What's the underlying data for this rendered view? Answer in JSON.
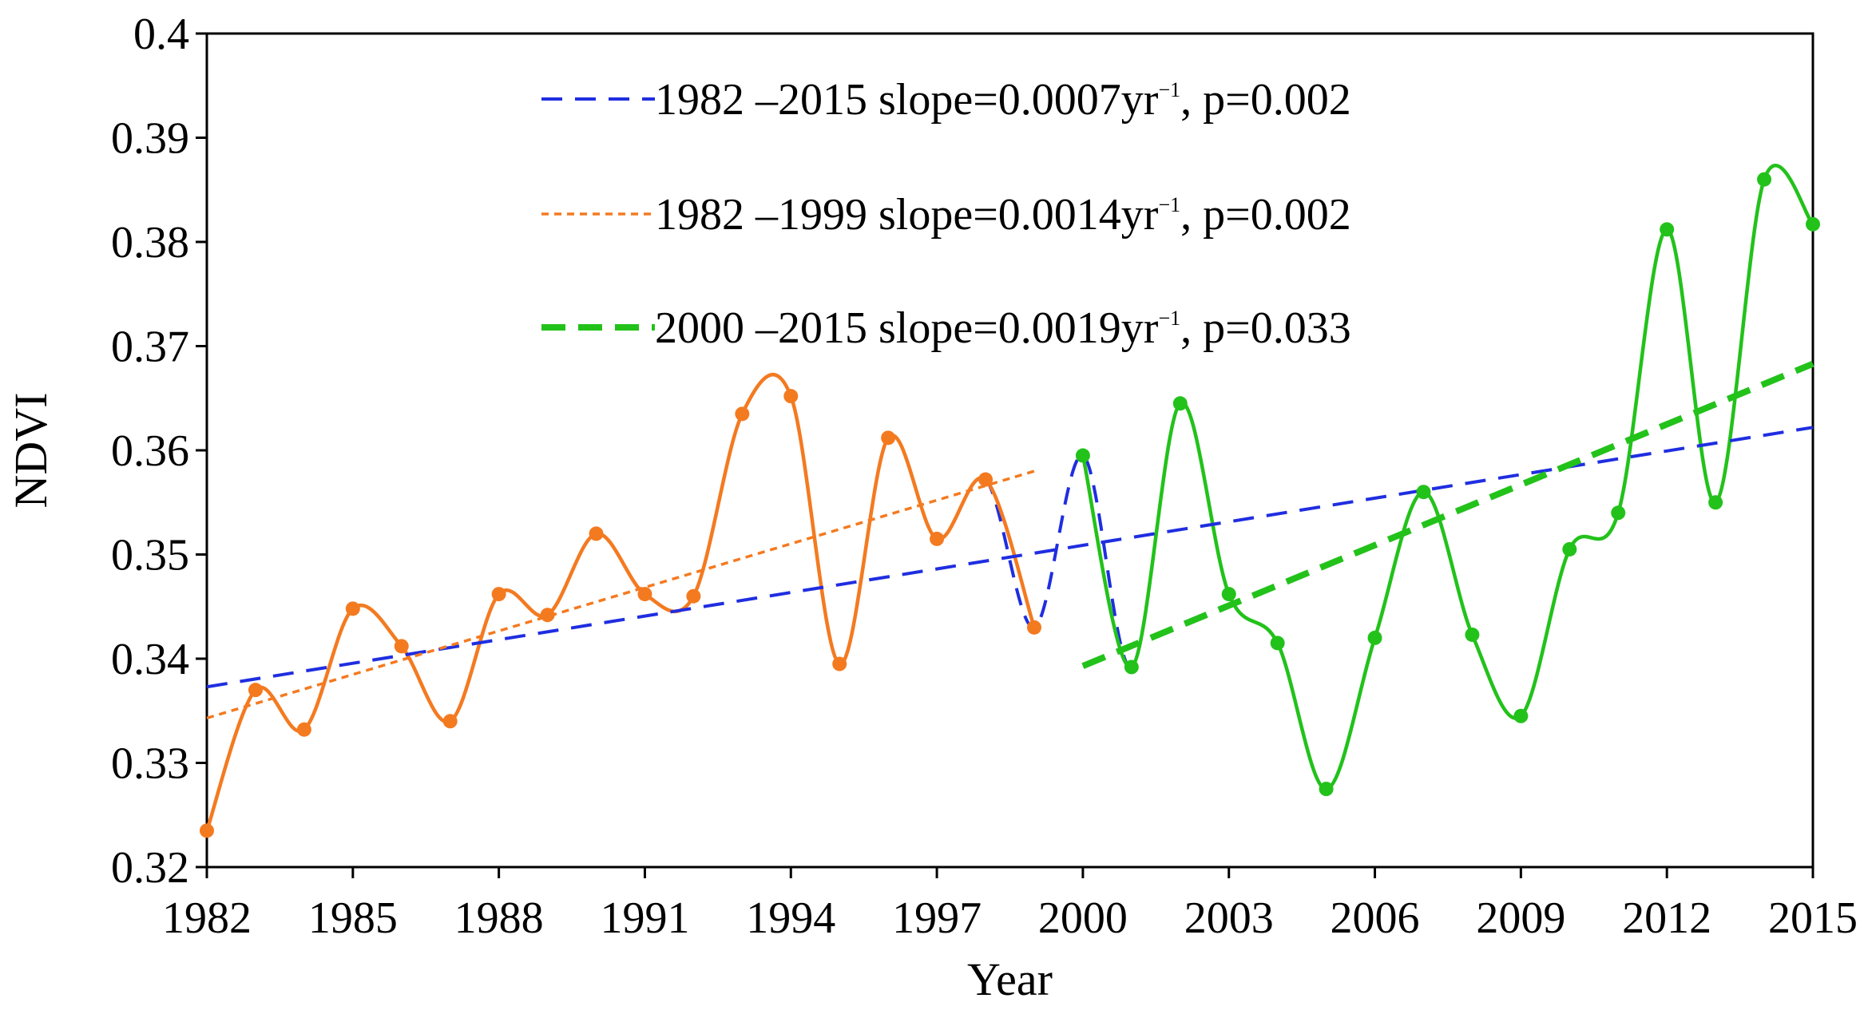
{
  "chart_data": {
    "type": "line",
    "title": "",
    "xlabel": "Year",
    "ylabel": "NDVI",
    "xlim": [
      1982,
      2015
    ],
    "ylim": [
      0.32,
      0.4
    ],
    "x_ticks": [
      "1982",
      "1985",
      "1988",
      "1991",
      "1994",
      "1997",
      "2000",
      "2003",
      "2006",
      "2009",
      "2012",
      "2015"
    ],
    "y_ticks": [
      "0.32",
      "0.33",
      "0.34",
      "0.35",
      "0.36",
      "0.37",
      "0.38",
      "0.39",
      "0.4"
    ],
    "grid": false,
    "legend_position": "top-center",
    "series": [
      {
        "name": "NDVI 1982-1999",
        "color": "#f47a20",
        "x": [
          1982,
          1983,
          1984,
          1985,
          1986,
          1987,
          1988,
          1989,
          1990,
          1991,
          1992,
          1993,
          1994,
          1995,
          1996,
          1997,
          1998,
          1999
        ],
        "values": [
          0.3235,
          0.337,
          0.3332,
          0.3448,
          0.3412,
          0.334,
          0.3462,
          0.3442,
          0.352,
          0.3462,
          0.346,
          0.3635,
          0.3652,
          0.3395,
          0.3612,
          0.3515,
          0.3572,
          0.343
        ]
      },
      {
        "name": "NDVI 2000-2015",
        "color": "#22c21a",
        "x": [
          2000,
          2001,
          2002,
          2003,
          2004,
          2005,
          2006,
          2007,
          2008,
          2009,
          2010,
          2011,
          2012,
          2013,
          2014,
          2015
        ],
        "values": [
          0.3595,
          0.3392,
          0.3645,
          0.3462,
          0.3415,
          0.3275,
          0.342,
          0.356,
          0.3423,
          0.3345,
          0.3505,
          0.354,
          0.3812,
          0.355,
          0.386,
          0.3817
        ]
      }
    ],
    "trends": [
      {
        "label_range": "1982 –2015",
        "label_slope": "slope=0.0007yr",
        "label_sup": "−1",
        "label_p": ", p=0.002",
        "x": [
          1982,
          2015
        ],
        "y": [
          0.3373,
          0.3622
        ],
        "color": "#1f2ee0",
        "style": "dashed"
      },
      {
        "label_range": "1982 –1999",
        "label_slope": "slope=0.0014yr",
        "label_sup": "−1",
        "label_p": ", p=0.002",
        "x": [
          1982,
          1999
        ],
        "y": [
          0.3343,
          0.358
        ],
        "color": "#f47a20",
        "style": "dotted"
      },
      {
        "label_range": "2000 –2015",
        "label_slope": "slope=0.0019yr",
        "label_sup": "−1",
        "label_p": ", p=0.033",
        "x": [
          2000,
          2015
        ],
        "y": [
          0.3393,
          0.3683
        ],
        "color": "#22c21a",
        "style": "bold-dashed"
      }
    ]
  }
}
